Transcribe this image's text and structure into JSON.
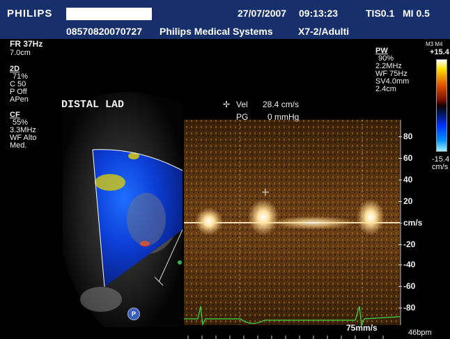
{
  "header": {
    "brand": "PHILIPS",
    "date": "27/07/2007",
    "time": "09:13:23",
    "tis": "TIS0.1",
    "mi": "MI 0.5",
    "patient_id": "08570820070727",
    "institution": "Philips Medical Systems",
    "probe_preset": "X7-2/Adulti"
  },
  "left_panel": {
    "fr": "FR 37Hz",
    "depth": "7.0cm",
    "twoD_title": "2D",
    "twoD_gain": "71%",
    "twoD_c": "C 50",
    "twoD_p": "P Off",
    "twoD_mode": "APen",
    "cf_title": "CF",
    "cf_gain": "55%",
    "cf_freq": "3.3MHz",
    "cf_wf": "WF Alto",
    "cf_med": "Med."
  },
  "right_panel": {
    "pw_title": "PW",
    "pw_gain": "90%",
    "pw_freq": "2.2MHz",
    "pw_wf": "WF  75Hz",
    "pw_sv": "SV4.0mm",
    "pw_depth": "2.4cm",
    "map_label": "M3 M4",
    "scale_max": "+15.4",
    "scale_min": "-15.4",
    "scale_unit": "cm/s"
  },
  "annotation": "DISTAL LAD",
  "measurement": {
    "vel_label": "Vel",
    "vel_value": "28.4 cm/s",
    "pg_label": "PG",
    "pg_value": "0 mmHg"
  },
  "doppler_scale": {
    "ticks": [
      "80",
      "60",
      "40",
      "20",
      "cm/s",
      "-20",
      "-40",
      "-60",
      "-80"
    ],
    "sweep_speed": "75mm/s",
    "heart_rate": "46bpm"
  },
  "probe_badge": "P",
  "colors": {
    "header_bg": "#17306b",
    "ecg": "#3ddc4a",
    "overlay_text": "#f0f0f0"
  },
  "icons": {
    "cursor": "crosshair-icon",
    "orientation": "probe-orientation-icon"
  }
}
